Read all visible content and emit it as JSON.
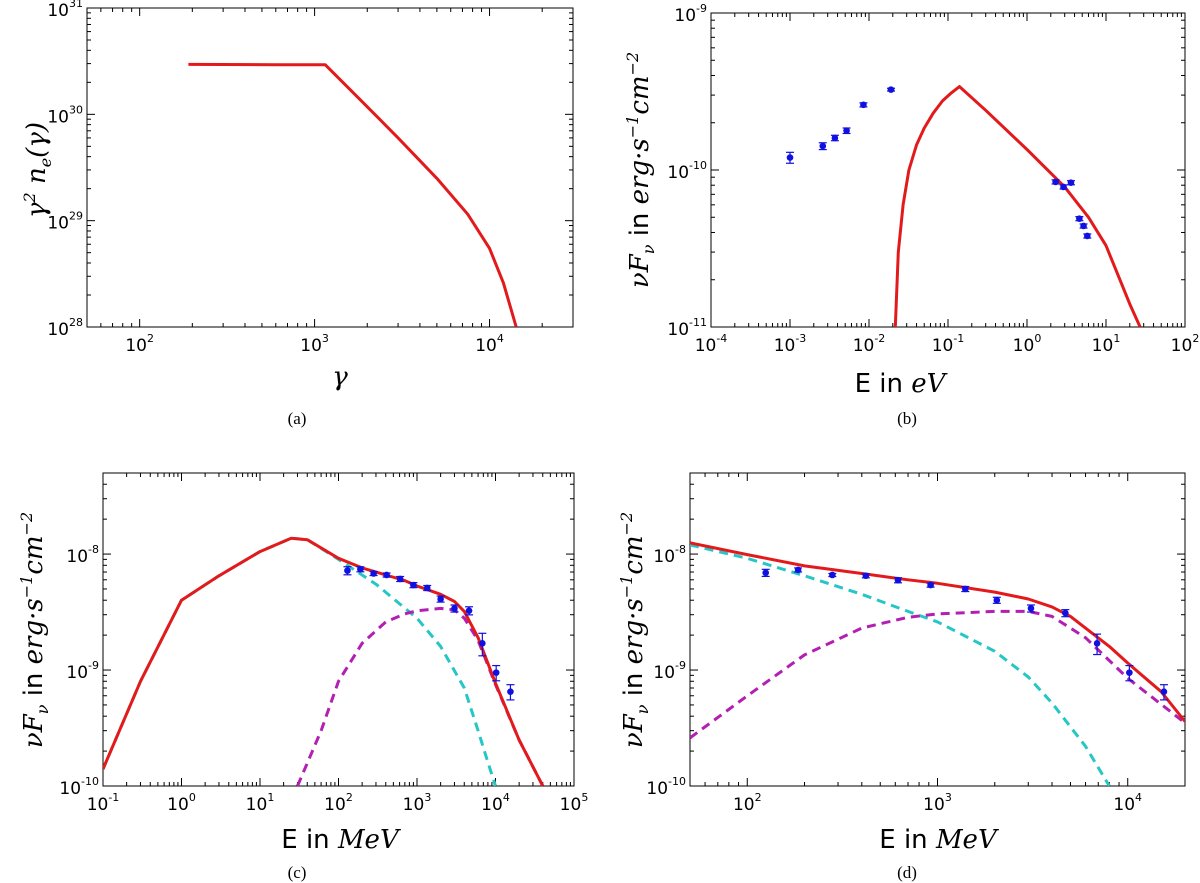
{
  "chart_data": [
    {
      "panel": "(a)",
      "type": "line",
      "x_scale": "log",
      "y_scale": "log",
      "xlim": [
        50,
        30000
      ],
      "ylim": [
        1e+28,
        1e+31
      ],
      "xlabel": "γ",
      "ylabel": "γ² nₑ(γ)",
      "x_ticks": [
        100,
        1000,
        10000
      ],
      "x_tick_labels": [
        [
          "10",
          "2"
        ],
        [
          "10",
          "3"
        ],
        [
          "10",
          "4"
        ]
      ],
      "y_ticks": [
        1e+28,
        1e+29,
        1e+30,
        1e+31
      ],
      "y_tick_labels": [
        [
          "10",
          "28"
        ],
        [
          "10",
          "29"
        ],
        [
          "10",
          "30"
        ],
        [
          "10",
          "31"
        ]
      ],
      "caption": "(a)",
      "series": [
        {
          "style": "solid",
          "color": "#e31a1c",
          "x": [
            190,
            600,
            1150,
            1800,
            3000,
            5000,
            7500,
            10000,
            12000,
            14200
          ],
          "y": [
            2.95e+30,
            2.93e+30,
            2.93e+30,
            1.4e+30,
            6e+29,
            2.5e+29,
            1.15e+29,
            5.5e+28,
            2.6e+28,
            1e+28
          ]
        }
      ]
    },
    {
      "panel": "(b)",
      "type": "line",
      "x_scale": "log",
      "y_scale": "log",
      "xlim": [
        0.0001,
        100
      ],
      "ylim": [
        1e-11,
        1e-09
      ],
      "xlabel": "E in eV",
      "ylabel": "νF_ν in erg·s⁻¹cm⁻²",
      "x_ticks": [
        0.0001,
        0.001,
        0.01,
        0.1,
        1,
        10,
        100
      ],
      "x_tick_labels": [
        [
          "10",
          "-4"
        ],
        [
          "10",
          "-3"
        ],
        [
          "10",
          "-2"
        ],
        [
          "10",
          "-1"
        ],
        [
          "10",
          "0"
        ],
        [
          "10",
          "1"
        ],
        [
          "10",
          "2"
        ]
      ],
      "y_ticks": [
        1e-11,
        1e-10,
        1e-09
      ],
      "y_tick_labels": [
        [
          "10",
          "-11"
        ],
        [
          "10",
          "-10"
        ],
        [
          "10",
          "-9"
        ]
      ],
      "caption": "(b)",
      "series": [
        {
          "style": "solid",
          "color": "#e31a1c",
          "x": [
            0.0215,
            0.0235,
            0.027,
            0.032,
            0.04,
            0.05,
            0.065,
            0.085,
            0.11,
            0.14,
            0.3,
            1.0,
            3.0,
            6.0,
            10,
            15,
            20,
            27
          ],
          "y": [
            1e-11,
            3e-11,
            6e-11,
            1e-10,
            1.45e-10,
            1.85e-10,
            2.3e-10,
            2.75e-10,
            3.1e-10,
            3.4e-10,
            2.4e-10,
            1.35e-10,
            7.8e-11,
            5e-11,
            3.3e-11,
            2e-11,
            1.4e-11,
            1e-11
          ]
        },
        {
          "style": "points",
          "color": "#1010e0",
          "x": [
            0.001,
            0.0026,
            0.0037,
            0.0052,
            0.0085,
            0.019,
            2.3,
            2.9,
            3.6,
            4.6,
            5.2,
            5.8
          ],
          "y": [
            1.2e-10,
            1.42e-10,
            1.6e-10,
            1.78e-10,
            2.6e-10,
            3.25e-10,
            8.4e-11,
            7.8e-11,
            8.3e-11,
            4.9e-11,
            4.4e-11,
            3.8e-11
          ],
          "yerr_frac": [
            0.08,
            0.05,
            0.04,
            0.04,
            0.03,
            0.02,
            0.03,
            0.03,
            0.03,
            0.03,
            0.03,
            0.03
          ]
        }
      ]
    },
    {
      "panel": "(c)",
      "type": "line",
      "x_scale": "log",
      "y_scale": "log",
      "xlim": [
        0.1,
        100000
      ],
      "ylim": [
        1e-10,
        5e-08
      ],
      "xlabel": "E in MeV",
      "ylabel": "νF_ν in erg·s⁻¹cm⁻²",
      "x_ticks": [
        0.1,
        1,
        10,
        100,
        1000,
        10000,
        100000
      ],
      "x_tick_labels": [
        [
          "10",
          "-1"
        ],
        [
          "10",
          "0"
        ],
        [
          "10",
          "1"
        ],
        [
          "10",
          "2"
        ],
        [
          "10",
          "3"
        ],
        [
          "10",
          "4"
        ],
        [
          "10",
          "5"
        ]
      ],
      "y_ticks": [
        1e-10,
        1e-09,
        1e-08
      ],
      "y_tick_labels": [
        [
          "10",
          "-10"
        ],
        [
          "10",
          "-9"
        ],
        [
          "10",
          "-8"
        ]
      ],
      "caption": "(c)",
      "series": [
        {
          "style": "dashed",
          "color": "#26c6c6",
          "x": [
            0.1,
            0.3,
            1.0,
            3,
            10,
            25,
            40,
            100,
            300,
            1000,
            2000,
            4000,
            6000,
            8000,
            10000
          ],
          "y": [
            1.4e-10,
            8e-10,
            4e-09,
            6.5e-09,
            1.05e-08,
            1.37e-08,
            1.33e-08,
            9e-09,
            5.5e-09,
            2.8e-09,
            1.6e-09,
            7e-10,
            3e-10,
            1.6e-10,
            1e-10
          ]
        },
        {
          "style": "dashed",
          "color": "#b21fb2",
          "x": [
            30,
            60,
            100,
            200,
            400,
            700,
            1000,
            2000,
            3000,
            4000,
            6000,
            10000,
            20000,
            40000
          ],
          "y": [
            1e-10,
            3e-10,
            8e-10,
            1.7e-09,
            2.6e-09,
            3.05e-09,
            3.25e-09,
            3.4e-09,
            3.3e-09,
            2.8e-09,
            1.8e-09,
            7.5e-10,
            2.5e-10,
            1e-10
          ]
        },
        {
          "style": "solid",
          "color": "#e31a1c",
          "x": [
            0.1,
            0.3,
            1.0,
            3,
            10,
            25,
            40,
            100,
            200,
            400,
            700,
            1000,
            2000,
            3000,
            4000,
            6000,
            10000,
            20000,
            40000
          ],
          "y": [
            1.4e-10,
            8e-10,
            4e-09,
            6.5e-09,
            1.05e-08,
            1.37e-08,
            1.33e-08,
            9.2e-09,
            7.6e-09,
            6.6e-09,
            5.9e-09,
            5.3e-09,
            4.5e-09,
            3.9e-09,
            3.2e-09,
            1.9e-09,
            7.7e-10,
            2.5e-10,
            1e-10
          ]
        },
        {
          "style": "points",
          "color": "#1010e0",
          "x": [
            130,
            190,
            280,
            410,
            610,
            900,
            1350,
            2000,
            3000,
            4600,
            6800,
            10200,
            15500
          ],
          "y": [
            7.2e-09,
            7.4e-09,
            6.8e-09,
            6.6e-09,
            6.1e-09,
            5.4e-09,
            5.1e-09,
            4.1e-09,
            3.4e-09,
            3.25e-09,
            1.7e-09,
            9.5e-10,
            6.5e-10
          ],
          "yerr_frac": [
            0.08,
            0.05,
            0.04,
            0.04,
            0.05,
            0.05,
            0.05,
            0.06,
            0.07,
            0.08,
            0.22,
            0.15,
            0.15
          ]
        }
      ]
    },
    {
      "panel": "(d)",
      "type": "line",
      "x_scale": "log",
      "y_scale": "log",
      "xlim": [
        50,
        20000
      ],
      "ylim": [
        1e-10,
        5e-08
      ],
      "xlabel": "E in MeV",
      "ylabel": "νF_ν in erg·s⁻¹cm⁻²",
      "x_ticks": [
        100,
        1000,
        10000
      ],
      "x_tick_labels": [
        [
          "10",
          "2"
        ],
        [
          "10",
          "3"
        ],
        [
          "10",
          "4"
        ]
      ],
      "y_ticks": [
        1e-10,
        1e-09,
        1e-08
      ],
      "y_tick_labels": [
        [
          "10",
          "-10"
        ],
        [
          "10",
          "-9"
        ],
        [
          "10",
          "-8"
        ]
      ],
      "caption": "(d)",
      "series": [
        {
          "style": "dashed",
          "color": "#26c6c6",
          "x": [
            50,
            100,
            200,
            400,
            700,
            1000,
            2000,
            3000,
            4000,
            6000,
            8000
          ],
          "y": [
            1.2e-08,
            9.2e-09,
            6.5e-09,
            4.5e-09,
            3.2e-09,
            2.6e-09,
            1.45e-09,
            8.7e-10,
            5.2e-10,
            2.2e-10,
            1e-10
          ]
        },
        {
          "style": "dashed",
          "color": "#b21fb2",
          "x": [
            50,
            100,
            200,
            400,
            700,
            1000,
            2000,
            3000,
            4000,
            6000,
            10000,
            20000
          ],
          "y": [
            2.6e-10,
            6e-10,
            1.35e-09,
            2.3e-09,
            2.85e-09,
            3.05e-09,
            3.2e-09,
            3.2e-09,
            2.9e-09,
            1.9e-09,
            8.5e-10,
            3.5e-10
          ]
        },
        {
          "style": "solid",
          "color": "#e31a1c",
          "x": [
            50,
            100,
            200,
            400,
            700,
            1000,
            2000,
            3000,
            4000,
            5000,
            6000,
            8000,
            10000,
            15000,
            20000
          ],
          "y": [
            1.25e-08,
            9.9e-09,
            7.9e-09,
            6.8e-09,
            6e-09,
            5.6e-09,
            4.7e-09,
            4.1e-09,
            3.5e-09,
            2.9e-09,
            2.3e-09,
            1.6e-09,
            1.15e-09,
            6.5e-10,
            3.6e-10
          ]
        },
        {
          "style": "points",
          "color": "#1010e0",
          "x": [
            125,
            185,
            280,
            420,
            620,
            920,
            1400,
            2050,
            3100,
            4700,
            6900,
            10200,
            15500
          ],
          "y": [
            6.9e-09,
            7.3e-09,
            6.6e-09,
            6.5e-09,
            5.95e-09,
            5.4e-09,
            5e-09,
            4e-09,
            3.4e-09,
            3.1e-09,
            1.7e-09,
            9.5e-10,
            6.5e-10
          ],
          "yerr_frac": [
            0.07,
            0.04,
            0.03,
            0.04,
            0.05,
            0.04,
            0.05,
            0.06,
            0.07,
            0.07,
            0.2,
            0.15,
            0.15
          ]
        }
      ]
    }
  ]
}
